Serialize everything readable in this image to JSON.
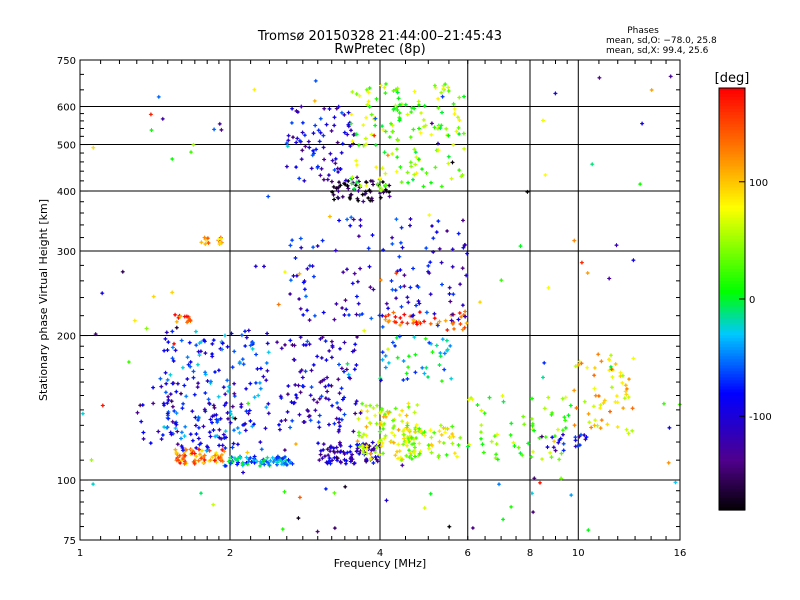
{
  "chart_data": {
    "type": "scatter",
    "title": "Tromsø 20150328 21:44:00–21:45:43",
    "subtitle": "RwPretec (8p)",
    "xlabel": "Frequency [MHz]",
    "ylabel": "Stationary phase Virtual Height [km]",
    "x_scale": "log",
    "y_scale": "log",
    "xlim": [
      1,
      16
    ],
    "ylim": [
      75,
      750
    ],
    "x_ticks": [
      1,
      2,
      4,
      6,
      8,
      10,
      16
    ],
    "x_tick_labels": [
      "1",
      "2",
      "4",
      "6",
      "8",
      "10",
      "16"
    ],
    "x_gridlines": [
      2,
      4,
      6,
      8,
      10
    ],
    "y_ticks": [
      75,
      100,
      200,
      300,
      400,
      500,
      600,
      750
    ],
    "y_tick_labels": [
      "75",
      "100",
      "200",
      "300",
      "400",
      "500",
      "600",
      "750"
    ],
    "y_gridlines": [
      100,
      200,
      300,
      400,
      500,
      600
    ],
    "grid": true,
    "stats": {
      "heading": "Phases",
      "line_o": "mean, sd,O: −78.0, 25.8",
      "line_x": "mean, sd,X:  99.4, 25.6"
    },
    "colorbar": {
      "unit": "deg",
      "min": -180,
      "max": 180,
      "ticks": [
        100,
        0,
        -100
      ],
      "tick_labels": [
        "100",
        "0",
        "-100"
      ]
    },
    "clusters": [
      {
        "x": [
          1.55,
          1.95
        ],
        "y": [
          108,
          116
        ],
        "phase": 130,
        "n": 70
      },
      {
        "x": [
          1.95,
          2.7
        ],
        "y": [
          107,
          112
        ],
        "phase": -35,
        "n": 80
      },
      {
        "x": [
          1.45,
          2.4
        ],
        "y": [
          115,
          205
        ],
        "phase": -65,
        "n": 180
      },
      {
        "x": [
          1.3,
          2.2
        ],
        "y": [
          118,
          160
        ],
        "phase": -110,
        "n": 60
      },
      {
        "x": [
          2.5,
          3.6
        ],
        "y": [
          125,
          200
        ],
        "phase": -100,
        "n": 110
      },
      {
        "x": [
          3.0,
          4.0
        ],
        "y": [
          108,
          120
        ],
        "phase": -115,
        "n": 90
      },
      {
        "x": [
          3.6,
          4.8
        ],
        "y": [
          110,
          145
        ],
        "phase": 70,
        "n": 110
      },
      {
        "x": [
          4.4,
          5.8
        ],
        "y": [
          110,
          130
        ],
        "phase": 60,
        "n": 60
      },
      {
        "x": [
          4.0,
          5.6
        ],
        "y": [
          160,
          200
        ],
        "phase": -25,
        "n": 40
      },
      {
        "x": [
          6.0,
          9.8
        ],
        "y": [
          110,
          150
        ],
        "phase": 40,
        "n": 60
      },
      {
        "x": [
          9.8,
          13.0
        ],
        "y": [
          125,
          185
        ],
        "phase": 95,
        "n": 60
      },
      {
        "x": [
          8.0,
          10.5
        ],
        "y": [
          115,
          125
        ],
        "phase": -100,
        "n": 20
      },
      {
        "x": [
          4.1,
          6.0
        ],
        "y": [
          205,
          225
        ],
        "phase": 140,
        "n": 45
      },
      {
        "x": [
          2.6,
          6.0
        ],
        "y": [
          210,
          350
        ],
        "phase": -95,
        "n": 130
      },
      {
        "x": [
          3.2,
          4.2
        ],
        "y": [
          380,
          420
        ],
        "phase": -160,
        "n": 60
      },
      {
        "x": [
          2.6,
          3.6
        ],
        "y": [
          420,
          600
        ],
        "phase": -100,
        "n": 80
      },
      {
        "x": [
          3.5,
          5.9
        ],
        "y": [
          400,
          670
        ],
        "phase": 40,
        "n": 160
      },
      {
        "x": [
          1.75,
          1.95
        ],
        "y": [
          310,
          320
        ],
        "phase": 120,
        "n": 15
      },
      {
        "x": [
          1.55,
          1.7
        ],
        "y": [
          213,
          222
        ],
        "phase": 150,
        "n": 15
      },
      {
        "x": [
          1.0,
          16.0
        ],
        "y": [
          75,
          750
        ],
        "phase": 0,
        "n": 140
      }
    ]
  }
}
